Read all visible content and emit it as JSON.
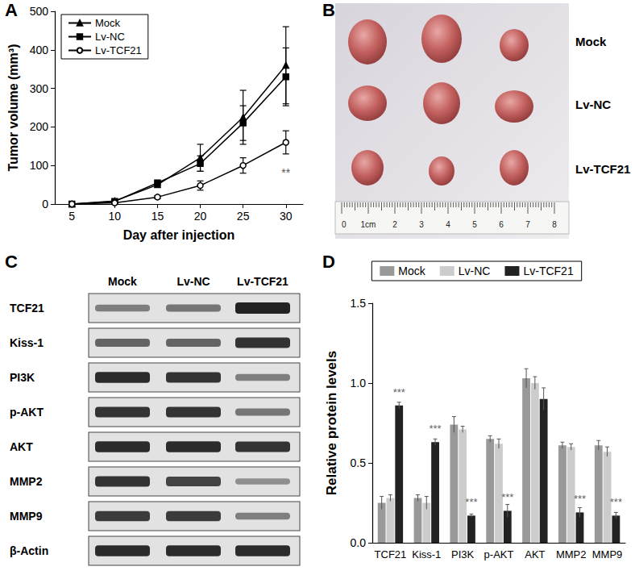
{
  "panel_labels": [
    "A",
    "B",
    "C",
    "D"
  ],
  "chart_data": [
    {
      "type": "line",
      "x_label": "Day after injection",
      "y_label": "Tumor volume (mm³)",
      "xlim": [
        3,
        32
      ],
      "xticks": [
        5,
        10,
        15,
        20,
        25,
        30
      ],
      "ylim": [
        0,
        500
      ],
      "yticks": [
        0,
        100,
        200,
        300,
        400,
        500
      ],
      "legend": "upper left",
      "grid": false,
      "x": [
        5,
        10,
        15,
        20,
        25,
        30
      ],
      "series": [
        {
          "name": "Mock",
          "color": "#000000",
          "marker": "triangle",
          "values": [
            0,
            8,
            50,
            120,
            225,
            360
          ],
          "errors": [
            0,
            2,
            5,
            35,
            70,
            100
          ]
        },
        {
          "name": "Lv-NC",
          "color": "#000000",
          "marker": "square",
          "values": [
            0,
            7,
            55,
            105,
            210,
            330
          ],
          "errors": [
            0,
            2,
            5,
            20,
            45,
            75
          ]
        },
        {
          "name": "Lv-TCF21",
          "color": "#000000",
          "marker": "open circle",
          "values": [
            0,
            3,
            18,
            48,
            100,
            160
          ],
          "errors": [
            0,
            1,
            4,
            12,
            20,
            30
          ]
        }
      ],
      "annotations": [
        {
          "series": "Lv-TCF21",
          "x": 30,
          "text": "**"
        }
      ]
    },
    {
      "type": "bar",
      "y_label": "Relative protein levels",
      "categories": [
        "TCF21",
        "Kiss-1",
        "PI3K",
        "p-AKT",
        "AKT",
        "MMP2",
        "MMP9"
      ],
      "ylim": [
        0,
        1.5
      ],
      "yticks": [
        {
          "value": 0,
          "label": "0.0"
        },
        {
          "value": 0.5,
          "label": "0.5"
        },
        {
          "value": 1,
          "label": "1.0"
        },
        {
          "value": 1.5,
          "label": "1.5"
        }
      ],
      "legend": "upper center",
      "grid": false,
      "series": [
        {
          "name": "Mock",
          "color": "#999999",
          "values": [
            0.25,
            0.28,
            0.74,
            0.65,
            1.03,
            0.61,
            0.61
          ],
          "errors": [
            0.04,
            0.02,
            0.05,
            0.02,
            0.06,
            0.02,
            0.03
          ]
        },
        {
          "name": "Lv-NC",
          "color": "#cccccc",
          "values": [
            0.28,
            0.25,
            0.71,
            0.62,
            1.0,
            0.6,
            0.57
          ],
          "errors": [
            0.02,
            0.04,
            0.02,
            0.03,
            0.04,
            0.02,
            0.03
          ]
        },
        {
          "name": "Lv-TCF21",
          "color": "#222222",
          "values": [
            0.86,
            0.63,
            0.17,
            0.2,
            0.9,
            0.19,
            0.17
          ],
          "errors": [
            0.02,
            0.02,
            0.01,
            0.04,
            0.07,
            0.03,
            0.02
          ]
        }
      ],
      "annotations": [
        {
          "series": "Lv-TCF21",
          "category": "TCF21",
          "text": "***"
        },
        {
          "series": "Lv-TCF21",
          "category": "Kiss-1",
          "text": "***"
        },
        {
          "series": "Lv-TCF21",
          "category": "PI3K",
          "text": "***"
        },
        {
          "series": "Lv-TCF21",
          "category": "p-AKT",
          "text": "***"
        },
        {
          "series": "Lv-TCF21",
          "category": "MMP2",
          "text": "***"
        },
        {
          "series": "Lv-TCF21",
          "category": "MMP9",
          "text": "***"
        }
      ]
    }
  ],
  "photo": {
    "row_labels": [
      "Mock",
      "Lv-NC",
      "Lv-TCF21"
    ],
    "ruler_labels": [
      "0",
      "1cm",
      "2",
      "3",
      "4",
      "5",
      "6",
      "7",
      "8"
    ]
  },
  "blot": {
    "lanes": [
      "Mock",
      "Lv-NC",
      "Lv-TCF21"
    ],
    "rows": [
      {
        "label": "TCF21",
        "intensity": [
          0.35,
          0.4,
          0.9
        ]
      },
      {
        "label": "Kiss-1",
        "intensity": [
          0.5,
          0.5,
          0.8
        ]
      },
      {
        "label": "PI3K",
        "intensity": [
          0.85,
          0.8,
          0.35
        ]
      },
      {
        "label": "p-AKT",
        "intensity": [
          0.8,
          0.8,
          0.4
        ]
      },
      {
        "label": "AKT",
        "intensity": [
          0.85,
          0.85,
          0.8
        ]
      },
      {
        "label": "MMP2",
        "intensity": [
          0.8,
          0.7,
          0.25
        ]
      },
      {
        "label": "MMP9",
        "intensity": [
          0.75,
          0.75,
          0.35
        ]
      },
      {
        "label": "β-Actin",
        "intensity": [
          0.85,
          0.85,
          0.85
        ]
      }
    ]
  }
}
